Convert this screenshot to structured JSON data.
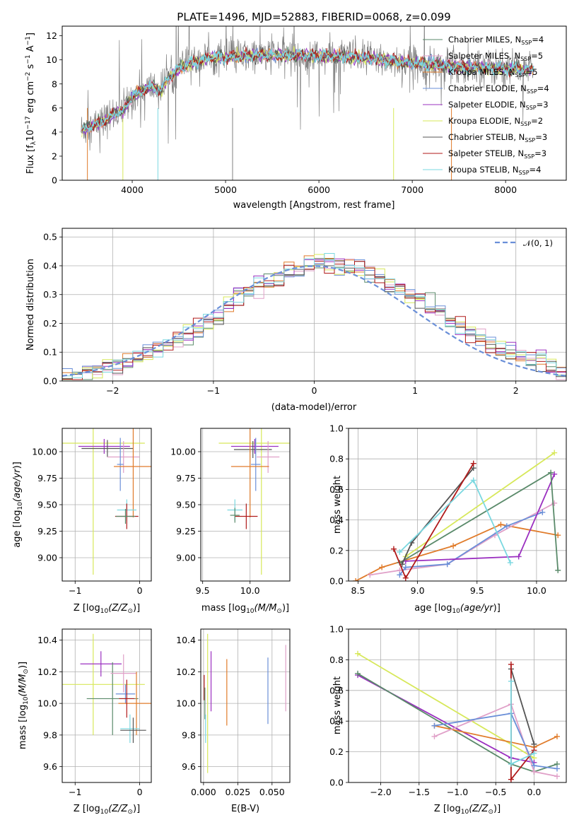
{
  "figure": {
    "title": "PLATE=1496, MJD=52883, FIBERID=0068, z=0.099"
  },
  "colors": {
    "chabrier_miles": "#5a8a6a",
    "salpeter_miles": "#e0a0c8",
    "kroupa_miles": "#e07b2a",
    "chabrier_elodie": "#6a8fd8",
    "salpeter_elodie": "#9b30c0",
    "kroupa_elodie": "#d7e85a",
    "chabrier_stelib": "#555555",
    "salpeter_stelib": "#b01a1a",
    "kroupa_stelib": "#7ad8e0",
    "normal": "#6a8fd8",
    "data": "#808080"
  },
  "chart_data": [
    {
      "id": "spectrum",
      "type": "line",
      "xlabel": "wavelength [Angstrom, rest frame]",
      "ylabel": "Flux [f",
      "xlim": [
        3250,
        8650
      ],
      "ylim": [
        0,
        12.8
      ],
      "xticks": [
        "4000",
        "5000",
        "6000",
        "7000",
        "8000"
      ],
      "yticks": [
        "0",
        "2",
        "4",
        "6",
        "8",
        "10",
        "12"
      ],
      "x_tick_values": [
        4000,
        5000,
        6000,
        7000,
        8000
      ],
      "y_tick_values": [
        0,
        2,
        4,
        6,
        8,
        10,
        12
      ],
      "legend": [
        "Chabrier MILES, N",
        "Salpeter MILES, N",
        "Kroupa MILES, N",
        "Chabrier ELODIE, N",
        "Salpeter ELODIE, N",
        "Kroupa ELODIE, N",
        "Chabrier STELIB, N",
        "Salpeter STELIB, N",
        "Kroupa STELIB, N"
      ],
      "legend_nssp": [
        "4",
        "5",
        "5",
        "4",
        "3",
        "2",
        "3",
        "3",
        "4"
      ],
      "legend_sub": "SSP",
      "continuum": {
        "x": [
          3450,
          3500,
          3600,
          3700,
          3800,
          3900,
          4000,
          4100,
          4200,
          4300,
          4400,
          4500,
          4600,
          4700,
          4800,
          4900,
          5000,
          5200,
          5400,
          5600,
          5800,
          6000,
          6200,
          6400,
          6600,
          6800,
          7000,
          7200,
          7400,
          7600,
          7800,
          8000,
          8200,
          8300
        ],
        "y": [
          4.2,
          4.3,
          4.6,
          4.9,
          5.5,
          5.8,
          6.9,
          7.4,
          7.8,
          7.5,
          8.6,
          9.3,
          9.6,
          9.9,
          10.1,
          10.2,
          10.2,
          10.3,
          10.4,
          10.4,
          10.4,
          10.3,
          10.3,
          10.2,
          10.1,
          9.9,
          9.7,
          9.6,
          9.5,
          9.4,
          9.3,
          9.3,
          9.2,
          9.2
        ]
      }
    },
    {
      "id": "residuals",
      "type": "histogram",
      "xlabel": "(data-model)/error",
      "ylabel": "Normed distribution",
      "xlim": [
        -2.5,
        2.5
      ],
      "ylim": [
        0,
        0.53
      ],
      "xticks": [
        "−2",
        "−1",
        "0",
        "1",
        "2"
      ],
      "yticks": [
        "0.0",
        "0.1",
        "0.2",
        "0.3",
        "0.4",
        "0.5"
      ],
      "x_tick_values": [
        -2,
        -1,
        0,
        1,
        2
      ],
      "y_tick_values": [
        0,
        0.1,
        0.2,
        0.3,
        0.4,
        0.5
      ],
      "legend": [
        "𝒩(0, 1)"
      ],
      "bin_width": 0.1
    },
    {
      "id": "age-vs-Z",
      "type": "errorbar",
      "xlabel": "Z [log",
      "ylabel": "age  [log",
      "xlim": [
        -1.2,
        0.18
      ],
      "ylim": [
        8.78,
        10.22
      ],
      "xticks": [
        "−1",
        "0"
      ],
      "yticks": [
        "9.00",
        "9.25",
        "9.50",
        "9.75",
        "10.00"
      ],
      "x_tick_values": [
        -1,
        0
      ],
      "y_tick_values": [
        9.0,
        9.25,
        9.5,
        9.75,
        10.0
      ],
      "points": [
        {
          "c": "kroupa_elodie",
          "x": -0.72,
          "xerr": 0.8,
          "y": 10.08,
          "yerr": 1.24
        },
        {
          "c": "salpeter_elodie",
          "x": -0.55,
          "xerr": 0.4,
          "y": 10.05,
          "yerr": 0.07
        },
        {
          "c": "chabrier_stelib",
          "x": -0.5,
          "xerr": 0.4,
          "y": 10.03,
          "yerr": 0.08
        },
        {
          "c": "salpeter_miles",
          "x": -0.25,
          "xerr": 0.25,
          "y": 9.95,
          "yerr": 0.15
        },
        {
          "c": "chabrier_elodie",
          "x": -0.3,
          "xerr": 0.05,
          "y": 9.88,
          "yerr": 0.25
        },
        {
          "c": "kroupa_miles",
          "x": -0.1,
          "xerr": 0.3,
          "y": 9.86,
          "yerr": 0.48
        },
        {
          "c": "kroupa_stelib",
          "x": -0.2,
          "xerr": 0.15,
          "y": 9.45,
          "yerr": 0.1
        },
        {
          "c": "salpeter_stelib",
          "x": -0.2,
          "xerr": 0.18,
          "y": 9.39,
          "yerr": 0.12
        },
        {
          "c": "chabrier_miles",
          "x": -0.22,
          "xerr": 0.15,
          "y": 9.39,
          "yerr": 0.07
        }
      ]
    },
    {
      "id": "age-vs-mass",
      "type": "errorbar",
      "xlabel": "mass [log",
      "ylabel": "",
      "xlim": [
        9.48,
        10.42
      ],
      "ylim": [
        8.78,
        10.22
      ],
      "xticks": [
        "9.5",
        "10.0"
      ],
      "yticks": [
        "9.00",
        "9.25",
        "9.50",
        "9.75",
        "10.00"
      ],
      "x_tick_values": [
        9.5,
        10.0
      ],
      "y_tick_values": [
        9.0,
        9.25,
        9.5,
        9.75,
        10.0
      ],
      "points": [
        {
          "c": "kroupa_elodie",
          "x": 10.12,
          "xerr": 0.45,
          "y": 10.08,
          "yerr": 1.24
        },
        {
          "c": "salpeter_elodie",
          "x": 10.05,
          "xerr": 0.25,
          "y": 10.05,
          "yerr": 0.07
        },
        {
          "c": "chabrier_stelib",
          "x": 10.03,
          "xerr": 0.2,
          "y": 10.02,
          "yerr": 0.08
        },
        {
          "c": "salpeter_miles",
          "x": 10.19,
          "xerr": 0.12,
          "y": 9.95,
          "yerr": 0.15
        },
        {
          "c": "chabrier_elodie",
          "x": 10.06,
          "xerr": 0.05,
          "y": 9.88,
          "yerr": 0.25
        },
        {
          "c": "kroupa_miles",
          "x": 10.0,
          "xerr": 0.2,
          "y": 9.86,
          "yerr": 0.48
        },
        {
          "c": "kroupa_stelib",
          "x": 9.84,
          "xerr": 0.08,
          "y": 9.45,
          "yerr": 0.1
        },
        {
          "c": "salpeter_stelib",
          "x": 9.96,
          "xerr": 0.12,
          "y": 9.39,
          "yerr": 0.12
        },
        {
          "c": "chabrier_miles",
          "x": 9.84,
          "xerr": 0.05,
          "y": 9.4,
          "yerr": 0.07
        }
      ]
    },
    {
      "id": "weight-vs-age",
      "type": "line",
      "xlabel": "age  [log",
      "ylabel": "mass weight",
      "xlim": [
        8.42,
        10.25
      ],
      "ylim": [
        0,
        1
      ],
      "xticks": [
        "8.5",
        "9.0",
        "9.5",
        "10.0"
      ],
      "yticks": [
        "0.0",
        "0.2",
        "0.4",
        "0.6",
        "0.8",
        "1.0"
      ],
      "x_tick_values": [
        8.5,
        9.0,
        9.5,
        10.0
      ],
      "y_tick_values": [
        0,
        0.2,
        0.4,
        0.6,
        0.8,
        1.0
      ],
      "series": [
        {
          "c": "kroupa_elodie",
          "x": [
            8.9,
            10.15
          ],
          "y": [
            0.16,
            0.84
          ]
        },
        {
          "c": "kroupa_miles",
          "x": [
            8.48,
            8.7,
            9.3,
            9.7,
            10.18
          ],
          "y": [
            0.0,
            0.09,
            0.23,
            0.37,
            0.3
          ]
        },
        {
          "c": "salpeter_miles",
          "x": [
            8.6,
            8.85,
            9.25,
            9.65,
            10.15
          ],
          "y": [
            0.04,
            0.07,
            0.11,
            0.3,
            0.51
          ]
        },
        {
          "c": "chabrier_elodie",
          "x": [
            8.85,
            8.9,
            9.25,
            9.75,
            10.05
          ],
          "y": [
            0.04,
            0.09,
            0.11,
            0.36,
            0.45
          ]
        },
        {
          "c": "salpeter_elodie",
          "x": [
            8.9,
            9.85,
            10.15
          ],
          "y": [
            0.13,
            0.16,
            0.7
          ]
        },
        {
          "c": "chabrier_miles",
          "x": [
            8.85,
            10.12,
            10.18
          ],
          "y": [
            0.12,
            0.71,
            0.07
          ]
        },
        {
          "c": "chabrier_stelib",
          "x": [
            8.87,
            8.95,
            9.47
          ],
          "y": [
            0.11,
            0.25,
            0.74
          ]
        },
        {
          "c": "salpeter_stelib",
          "x": [
            8.8,
            8.9,
            9.47
          ],
          "y": [
            0.21,
            0.02,
            0.77
          ]
        },
        {
          "c": "kroupa_stelib",
          "x": [
            8.85,
            9.47,
            9.78
          ],
          "y": [
            0.19,
            0.66,
            0.12
          ]
        }
      ]
    },
    {
      "id": "mass-vs-Z",
      "type": "errorbar",
      "xlabel": "Z [log",
      "ylabel": "mass [log",
      "xlim": [
        -1.2,
        0.18
      ],
      "ylim": [
        9.5,
        10.47
      ],
      "xticks": [
        "−1",
        "0"
      ],
      "yticks": [
        "9.6",
        "9.8",
        "10.0",
        "10.2",
        "10.4"
      ],
      "x_tick_values": [
        -1,
        0
      ],
      "y_tick_values": [
        9.6,
        9.8,
        10.0,
        10.2,
        10.4
      ],
      "points": [
        {
          "c": "kroupa_elodie",
          "x": -0.72,
          "xerr": 0.8,
          "y": 10.12,
          "yerr": 0.32
        },
        {
          "c": "salpeter_elodie",
          "x": -0.6,
          "xerr": 0.32,
          "y": 10.25,
          "yerr": 0.08
        },
        {
          "c": "chabrier_miles",
          "x": -0.42,
          "xerr": 0.4,
          "y": 10.03,
          "yerr": 0.23
        },
        {
          "c": "salpeter_miles",
          "x": -0.25,
          "xerr": 0.2,
          "y": 10.19,
          "yerr": 0.12
        },
        {
          "c": "chabrier_elodie",
          "x": -0.22,
          "xerr": 0.15,
          "y": 10.06,
          "yerr": 0.06
        },
        {
          "c": "kroupa_miles",
          "x": -0.05,
          "xerr": 0.28,
          "y": 10.0,
          "yerr": 0.2
        },
        {
          "c": "salpeter_stelib",
          "x": -0.2,
          "xerr": 0.12,
          "y": 10.03,
          "yerr": 0.12
        },
        {
          "c": "kroupa_stelib",
          "x": -0.15,
          "xerr": 0.15,
          "y": 9.84,
          "yerr": 0.09
        },
        {
          "c": "chabrier_stelib",
          "x": -0.1,
          "xerr": 0.2,
          "y": 9.83,
          "yerr": 0.08
        }
      ]
    },
    {
      "id": "mass-vs-ebv",
      "type": "errorbar",
      "xlabel": "E(B-V)",
      "ylabel": "",
      "xlim": [
        -0.002,
        0.063
      ],
      "ylim": [
        9.5,
        10.47
      ],
      "xticks": [
        "0.000",
        "0.025",
        "0.050"
      ],
      "yticks": [
        "9.6",
        "9.8",
        "10.0",
        "10.2",
        "10.4"
      ],
      "x_tick_values": [
        0,
        0.025,
        0.05
      ],
      "y_tick_values": [
        9.6,
        9.8,
        10.0,
        10.2,
        10.4
      ],
      "points": [
        {
          "c": "salpeter_stelib",
          "x": 0.0005,
          "xerr": 0,
          "y": 10.1,
          "yerr": 0.08
        },
        {
          "c": "chabrier_miles",
          "x": 0.001,
          "xerr": 0,
          "y": 10.0,
          "yerr": 0.1
        },
        {
          "c": "kroupa_stelib",
          "x": 0.0015,
          "xerr": 0,
          "y": 9.84,
          "yerr": 0.09
        },
        {
          "c": "kroupa_elodie",
          "x": 0.003,
          "xerr": 0,
          "y": 10.0,
          "yerr": 0.44
        },
        {
          "c": "salpeter_elodie",
          "x": 0.0055,
          "xerr": 0,
          "y": 10.14,
          "yerr": 0.19
        },
        {
          "c": "kroupa_miles",
          "x": 0.017,
          "xerr": 0,
          "y": 10.07,
          "yerr": 0.21
        },
        {
          "c": "chabrier_elodie",
          "x": 0.047,
          "xerr": 0,
          "y": 10.08,
          "yerr": 0.21
        },
        {
          "c": "salpeter_miles",
          "x": 0.06,
          "xerr": 0,
          "y": 10.16,
          "yerr": 0.21
        }
      ]
    },
    {
      "id": "weight-vs-Z",
      "type": "line",
      "xlabel": "Z [log",
      "ylabel": "mass weight",
      "xlim": [
        -2.42,
        0.42
      ],
      "ylim": [
        0,
        1
      ],
      "xticks": [
        "−2.0",
        "−1.5",
        "−1.0",
        "−0.5",
        "0.0"
      ],
      "yticks": [
        "0.0",
        "0.2",
        "0.4",
        "0.6",
        "0.8",
        "1.0"
      ],
      "x_tick_values": [
        -2,
        -1.5,
        -1,
        -0.5,
        0
      ],
      "y_tick_values": [
        0,
        0.2,
        0.4,
        0.6,
        0.8,
        1.0
      ],
      "series": [
        {
          "c": "kroupa_elodie",
          "x": [
            -2.3,
            0.0
          ],
          "y": [
            0.84,
            0.16
          ]
        },
        {
          "c": "salpeter_elodie",
          "x": [
            -2.3,
            -0.3,
            0.0
          ],
          "y": [
            0.7,
            0.16,
            0.13
          ]
        },
        {
          "c": "chabrier_miles",
          "x": [
            -2.3,
            -0.3,
            0.0,
            0.3
          ],
          "y": [
            0.71,
            0.12,
            0.07,
            0.12
          ]
        },
        {
          "c": "kroupa_miles",
          "x": [
            -1.3,
            0.0,
            0.3
          ],
          "y": [
            0.37,
            0.23,
            0.3
          ]
        },
        {
          "c": "salpeter_miles",
          "x": [
            -1.3,
            -0.3,
            0.0,
            0.3
          ],
          "y": [
            0.3,
            0.51,
            0.07,
            0.04
          ]
        },
        {
          "c": "chabrier_elodie",
          "x": [
            -1.3,
            -0.3,
            0.0,
            0.3
          ],
          "y": [
            0.37,
            0.45,
            0.11,
            0.09
          ]
        },
        {
          "c": "chabrier_stelib",
          "x": [
            -0.3,
            0.0
          ],
          "y": [
            0.74,
            0.25
          ]
        },
        {
          "c": "salpeter_stelib",
          "x": [
            -0.3,
            -0.3,
            0.0
          ],
          "y": [
            0.77,
            0.02,
            0.21
          ]
        },
        {
          "c": "kroupa_stelib",
          "x": [
            -0.3,
            -0.3,
            0.0
          ],
          "y": [
            0.66,
            0.12,
            0.19
          ]
        }
      ]
    }
  ]
}
